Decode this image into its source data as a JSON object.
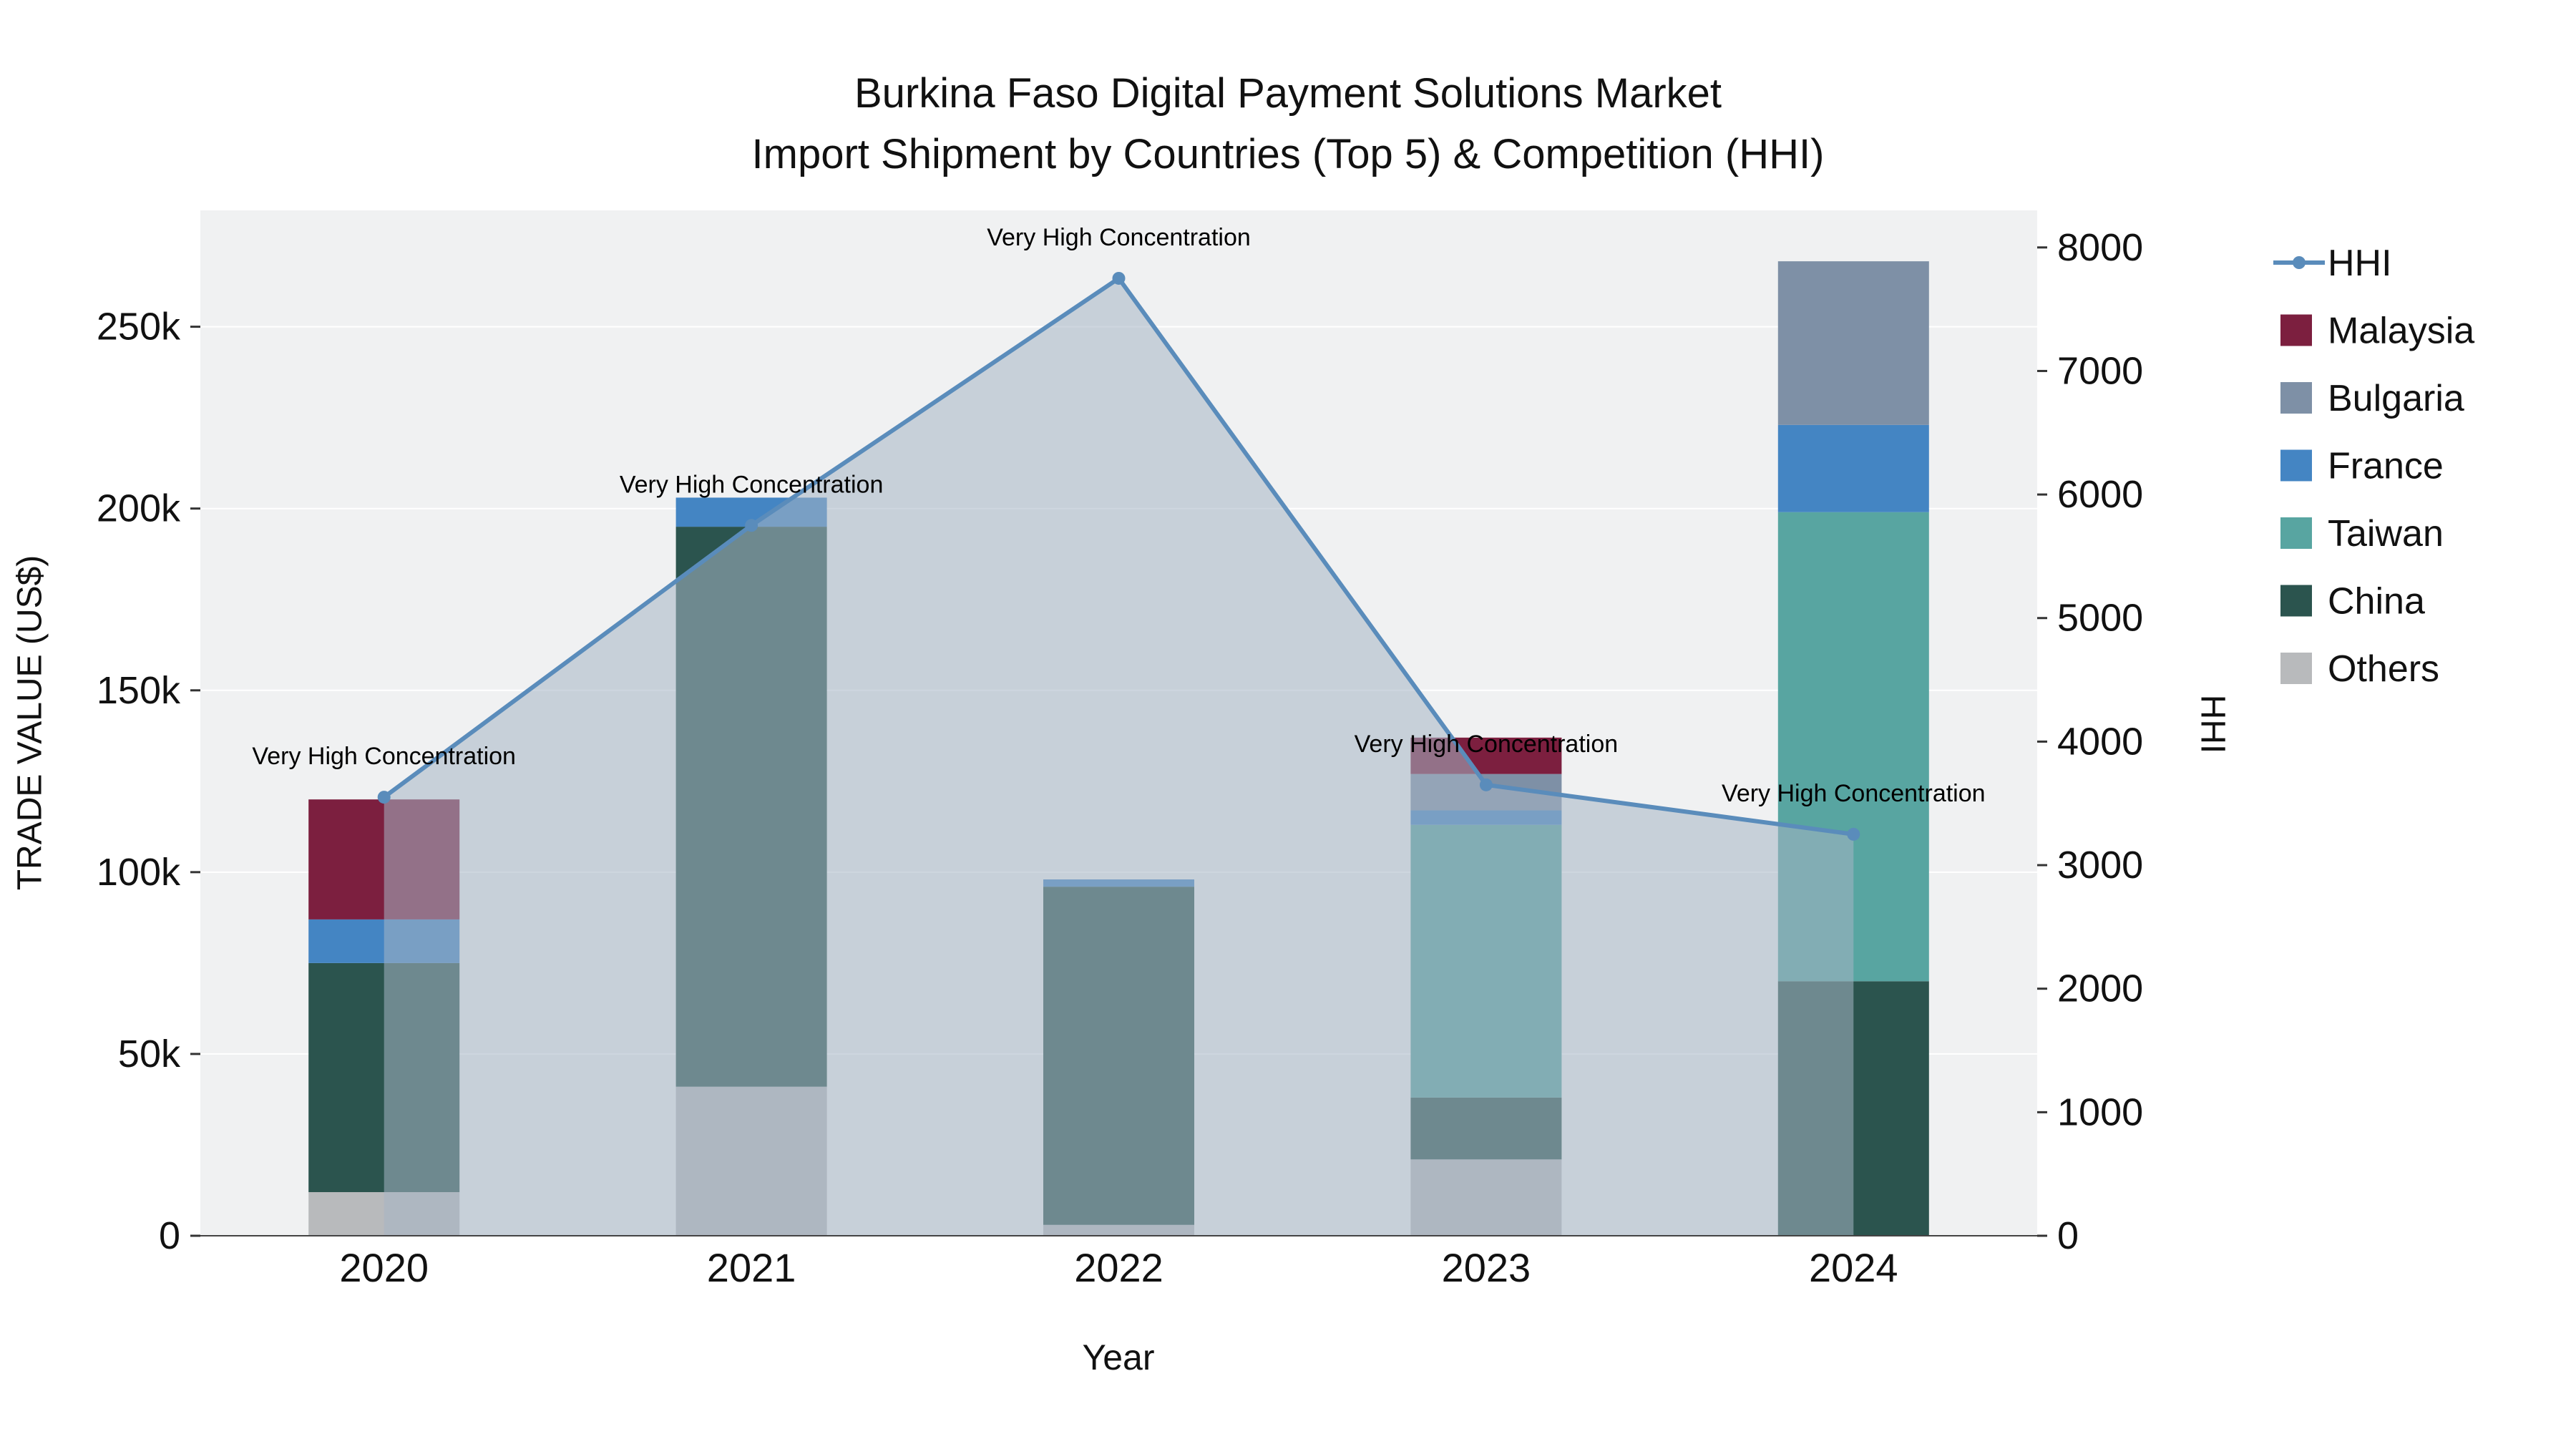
{
  "chart_data": {
    "type": "bar",
    "subtype": "stacked-bar-with-line",
    "title_line1": "Burkina Faso Digital Payment Solutions Market",
    "title_line2": "Import Shipment by Countries (Top 5) & Competition (HHI)",
    "xlabel": "Year",
    "categories": [
      "2020",
      "2021",
      "2022",
      "2023",
      "2024"
    ],
    "y_left": {
      "label": "TRADE VALUE (US$)",
      "max": 282000,
      "tick_values": [
        0,
        50000,
        100000,
        150000,
        200000,
        250000
      ],
      "tick_labels": [
        "0",
        "50k",
        "100k",
        "150k",
        "200k",
        "250k"
      ]
    },
    "y_right": {
      "label": "HHI",
      "max": 8300,
      "tick_values": [
        0,
        1000,
        2000,
        3000,
        4000,
        5000,
        6000,
        7000,
        8000
      ],
      "tick_labels": [
        "0",
        "1000",
        "2000",
        "3000",
        "4000",
        "5000",
        "6000",
        "7000",
        "8000"
      ]
    },
    "plot_bg": "#f0f1f2",
    "grid_color": "#ffffff",
    "bar_series_bottom_to_top": [
      {
        "name": "Others",
        "color": "#b8babc",
        "values": [
          12000,
          41000,
          3000,
          21000,
          0
        ]
      },
      {
        "name": "China",
        "color": "#2b544e",
        "values": [
          63000,
          154000,
          93000,
          17000,
          70000
        ]
      },
      {
        "name": "Taiwan",
        "color": "#58a5a1",
        "values": [
          0,
          0,
          0,
          75000,
          129000
        ]
      },
      {
        "name": "France",
        "color": "#4485c3",
        "values": [
          12000,
          8000,
          2000,
          4000,
          24000
        ]
      },
      {
        "name": "Bulgaria",
        "color": "#7e90a6",
        "values": [
          0,
          0,
          0,
          10000,
          45000
        ]
      },
      {
        "name": "Malaysia",
        "color": "#7c1f3f",
        "values": [
          33000,
          0,
          0,
          10000,
          0
        ]
      }
    ],
    "hhi": {
      "name": "HHI",
      "color": "#5a8cbb",
      "area_fill": "rgba(166,180,197,0.55)",
      "values": [
        3550,
        5750,
        7750,
        3650,
        3250
      ]
    },
    "annotation_text": "Very High Concentration",
    "legend": [
      {
        "label": "HHI",
        "color": "#5a8cbb",
        "type": "line"
      },
      {
        "label": "Malaysia",
        "color": "#7c1f3f",
        "type": "square"
      },
      {
        "label": "Bulgaria",
        "color": "#7e90a6",
        "type": "square"
      },
      {
        "label": "France",
        "color": "#4485c3",
        "type": "square"
      },
      {
        "label": "Taiwan",
        "color": "#58a5a1",
        "type": "square"
      },
      {
        "label": "China",
        "color": "#2b544e",
        "type": "square"
      },
      {
        "label": "Others",
        "color": "#b8babc",
        "type": "square"
      }
    ]
  }
}
